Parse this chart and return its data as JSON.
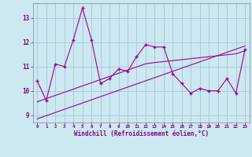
{
  "xlabel": "Windchill (Refroidissement éolien,°C)",
  "background_color": "#cce8f0",
  "grid_color": "#aaccdd",
  "line_color": "#990099",
  "xlim": [
    -0.5,
    23.5
  ],
  "ylim": [
    8.7,
    13.6
  ],
  "x_values": [
    0,
    1,
    2,
    3,
    4,
    5,
    6,
    7,
    8,
    9,
    10,
    11,
    12,
    13,
    14,
    15,
    16,
    17,
    18,
    19,
    20,
    21,
    22,
    23
  ],
  "y_main": [
    10.4,
    9.6,
    11.1,
    11.0,
    12.1,
    13.4,
    12.1,
    10.3,
    10.5,
    10.9,
    10.8,
    11.4,
    11.9,
    11.8,
    11.8,
    10.7,
    10.3,
    9.9,
    10.1,
    10.0,
    10.0,
    10.5,
    9.9,
    11.7
  ],
  "y_trend1": [
    9.55,
    9.68,
    9.81,
    9.94,
    10.07,
    10.2,
    10.33,
    10.46,
    10.59,
    10.72,
    10.85,
    10.98,
    11.11,
    11.16,
    11.2,
    11.24,
    11.28,
    11.32,
    11.36,
    11.4,
    11.44,
    11.48,
    11.52,
    11.65
  ],
  "y_trend2": [
    8.85,
    8.98,
    9.11,
    9.24,
    9.37,
    9.5,
    9.63,
    9.76,
    9.89,
    10.02,
    10.15,
    10.28,
    10.41,
    10.54,
    10.67,
    10.8,
    10.93,
    11.06,
    11.19,
    11.32,
    11.45,
    11.58,
    11.71,
    11.84
  ],
  "yticks": [
    9,
    10,
    11,
    12,
    13
  ],
  "xticks": [
    0,
    1,
    2,
    3,
    4,
    5,
    6,
    7,
    8,
    9,
    10,
    11,
    12,
    13,
    14,
    15,
    16,
    17,
    18,
    19,
    20,
    21,
    22,
    23
  ]
}
